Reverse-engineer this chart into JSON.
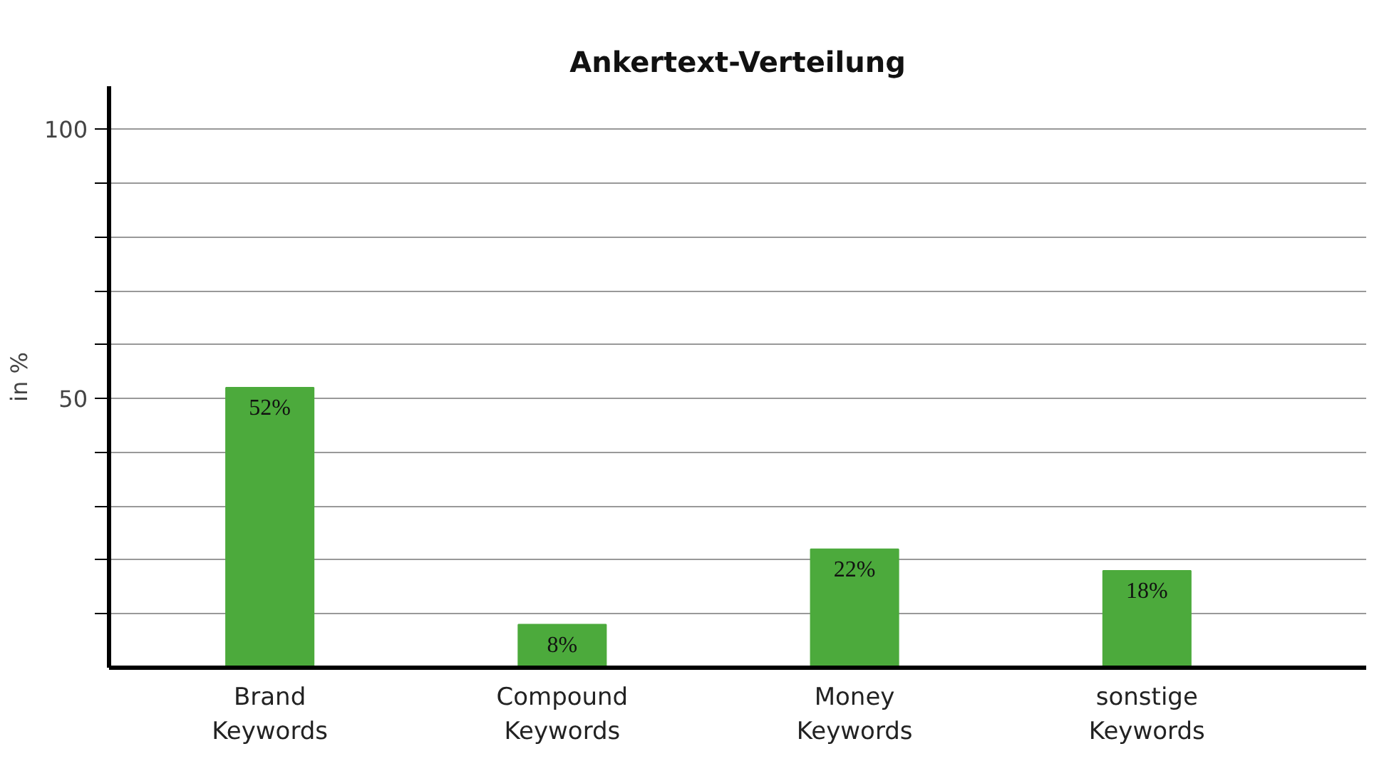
{
  "chart_data": {
    "type": "bar",
    "title": "Ankertext-Verteilung",
    "ylabel": "in %",
    "categories": [
      "Brand Keywords",
      "Compound Keywords",
      "Money Keywords",
      "sonstige Keywords"
    ],
    "values": [
      52,
      8,
      22,
      18
    ],
    "value_labels": [
      "52%",
      "8%",
      "22%",
      "18%"
    ],
    "color": "#4caa3c",
    "ylim": [
      0,
      108
    ],
    "yticks": [
      {
        "value": 10,
        "label": null
      },
      {
        "value": 20,
        "label": null
      },
      {
        "value": 30,
        "label": null
      },
      {
        "value": 40,
        "label": null
      },
      50,
      {
        "value": 60,
        "label": null
      },
      {
        "value": 70,
        "label": null
      },
      {
        "value": 80,
        "label": null
      },
      {
        "value": 90,
        "label": null
      },
      100
    ],
    "grid": "y"
  }
}
